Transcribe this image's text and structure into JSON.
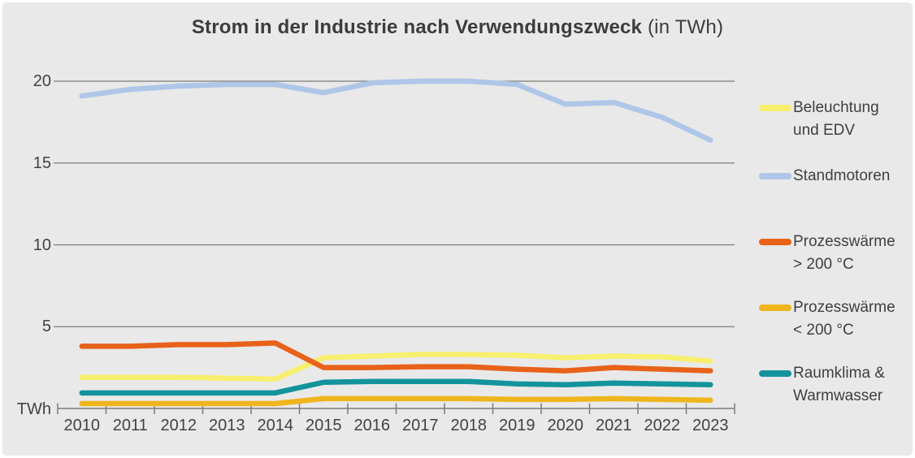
{
  "title": {
    "main": "Strom in der Industrie nach Verwendungszweck",
    "suffix": " (in TWh)"
  },
  "axis": {
    "unit_label": "TWh",
    "yticks": [
      5,
      10,
      15,
      20
    ]
  },
  "legend": {
    "items": [
      {
        "lines": [
          "Beleuchtung",
          "und EDV"
        ],
        "color": "#f7ef6d"
      },
      {
        "lines": [
          "Standmotoren",
          ""
        ],
        "color": "#aec6e8"
      },
      {
        "lines": [
          "Prozesswärme",
          "> 200 °C"
        ],
        "color": "#e8621a"
      },
      {
        "lines": [
          "Prozesswärme",
          "< 200 °C"
        ],
        "color": "#efb51d"
      },
      {
        "lines": [
          "Raumklima &",
          "Warmwasser"
        ],
        "color": "#13939c"
      }
    ]
  },
  "chart_data": {
    "type": "line",
    "title": "Strom in der Industrie nach Verwendungszweck (in TWh)",
    "xlabel": "",
    "ylabel": "TWh",
    "ylim": [
      0,
      21
    ],
    "yticks": [
      5,
      10,
      15,
      20
    ],
    "grid": true,
    "legend_position": "right",
    "background_color": "#e9e9e9",
    "gridline_color": "#7b7b7b",
    "categories": [
      2010,
      2011,
      2012,
      2013,
      2014,
      2015,
      2016,
      2017,
      2018,
      2019,
      2020,
      2021,
      2022,
      2023
    ],
    "series": [
      {
        "name": "Beleuchtung und EDV",
        "color": "#f7ef6d",
        "values": [
          1.9,
          1.9,
          1.9,
          1.85,
          1.8,
          3.1,
          3.2,
          3.3,
          3.3,
          3.25,
          3.1,
          3.2,
          3.15,
          2.9
        ]
      },
      {
        "name": "Standmotoren",
        "color": "#aec6e8",
        "values": [
          19.1,
          19.5,
          19.7,
          19.8,
          19.8,
          19.3,
          19.9,
          20.0,
          20.0,
          19.8,
          18.6,
          18.7,
          17.8,
          16.4
        ]
      },
      {
        "name": "Prozesswärme > 200 °C",
        "color": "#e8621a",
        "values": [
          3.8,
          3.8,
          3.9,
          3.9,
          4.0,
          2.5,
          2.5,
          2.55,
          2.55,
          2.4,
          2.3,
          2.5,
          2.4,
          2.3
        ]
      },
      {
        "name": "Prozesswärme < 200 °C",
        "color": "#efb51d",
        "values": [
          0.3,
          0.3,
          0.3,
          0.3,
          0.3,
          0.6,
          0.6,
          0.6,
          0.6,
          0.55,
          0.55,
          0.6,
          0.55,
          0.5
        ]
      },
      {
        "name": "Raumklima & Warmwasser",
        "color": "#13939c",
        "values": [
          0.95,
          0.95,
          0.95,
          0.95,
          0.95,
          1.6,
          1.65,
          1.65,
          1.65,
          1.5,
          1.45,
          1.55,
          1.5,
          1.45
        ]
      }
    ]
  }
}
